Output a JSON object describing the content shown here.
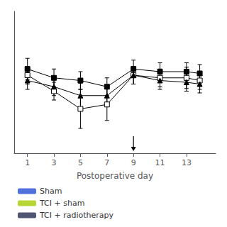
{
  "chart_data": {
    "type": "line",
    "x": [
      1,
      3,
      5,
      7,
      9,
      11,
      13,
      14
    ],
    "series": [
      {
        "name": "Sham",
        "color": "#000000",
        "marker": "filled_square",
        "values": [
          5.55,
          5.45,
          5.42,
          5.35,
          5.55,
          5.52,
          5.52,
          5.5
        ],
        "yerr": [
          0.12,
          0.1,
          0.1,
          0.1,
          0.1,
          0.1,
          0.1,
          0.1
        ]
      },
      {
        "name": "TCI + sham",
        "color": "#000000",
        "marker": "open_square",
        "values": [
          5.48,
          5.3,
          5.1,
          5.15,
          5.48,
          5.45,
          5.45,
          5.42
        ],
        "yerr": [
          0.1,
          0.1,
          0.22,
          0.18,
          0.1,
          0.1,
          0.12,
          0.1
        ]
      },
      {
        "name": "TCI + radiotherapy",
        "color": "#000000",
        "marker": "filled_triangle",
        "values": [
          5.42,
          5.35,
          5.25,
          5.25,
          5.48,
          5.42,
          5.4,
          5.38
        ],
        "yerr": [
          0.1,
          0.1,
          0.14,
          0.12,
          0.1,
          0.1,
          0.1,
          0.1
        ]
      }
    ],
    "xlim": [
      0.0,
      15.2
    ],
    "ylim": [
      4.6,
      6.2
    ],
    "xticks": [
      1,
      3,
      5,
      7,
      9,
      11,
      13
    ],
    "xlabel": "Postoperative day",
    "tick_labels": "x",
    "grid": false,
    "legend": "lower left",
    "arrow_x": 9
  }
}
